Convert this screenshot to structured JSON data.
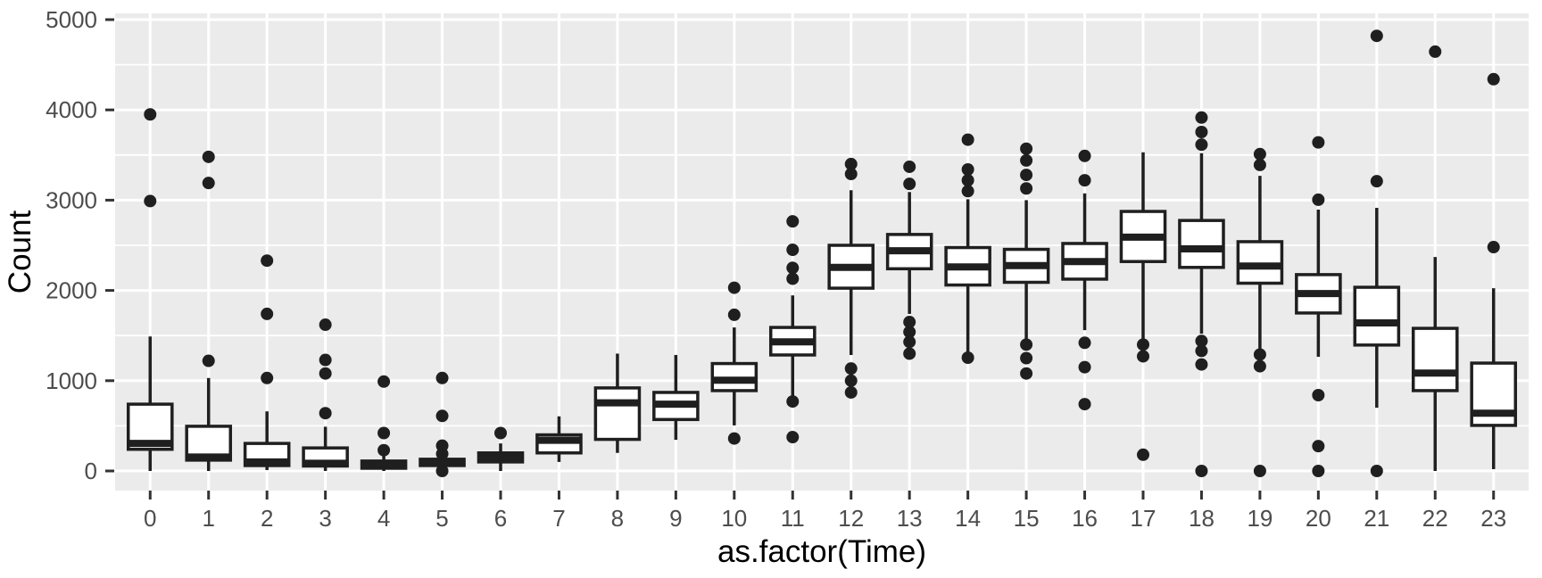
{
  "chart_data": {
    "type": "boxplot",
    "title": "",
    "xlabel": "as.factor(Time)",
    "ylabel": "Count",
    "x_tick_labels": [
      "0",
      "1",
      "2",
      "3",
      "4",
      "5",
      "6",
      "7",
      "8",
      "9",
      "10",
      "11",
      "12",
      "13",
      "14",
      "15",
      "16",
      "17",
      "18",
      "19",
      "20",
      "21",
      "22",
      "23"
    ],
    "y_tick_labels": [
      "0",
      "1000",
      "2000",
      "3000",
      "4000",
      "5000"
    ],
    "y_major_breaks": [
      0,
      1000,
      2000,
      3000,
      4000,
      5000
    ],
    "y_minor_breaks": [
      500,
      1500,
      2500,
      3500,
      4500
    ],
    "ylim": [
      -220,
      5070
    ],
    "grid": "on",
    "legend": "none",
    "boxes": [
      {
        "time": "0",
        "low": 0,
        "q1": 240,
        "median": 305,
        "q3": 740,
        "high": 1490,
        "outliers": [
          2990,
          3950
        ]
      },
      {
        "time": "1",
        "low": 0,
        "q1": 120,
        "median": 155,
        "q3": 495,
        "high": 1030,
        "outliers": [
          1220,
          3190,
          3480
        ]
      },
      {
        "time": "2",
        "low": 10,
        "q1": 60,
        "median": 100,
        "q3": 305,
        "high": 660,
        "outliers": [
          1030,
          1740,
          2330
        ]
      },
      {
        "time": "3",
        "low": 0,
        "q1": 55,
        "median": 85,
        "q3": 255,
        "high": 490,
        "outliers": [
          640,
          1080,
          1230,
          1620
        ]
      },
      {
        "time": "4",
        "low": 0,
        "q1": 30,
        "median": 75,
        "q3": 110,
        "high": 165,
        "outliers": [
          230,
          420,
          990
        ]
      },
      {
        "time": "5",
        "low": 0,
        "q1": 60,
        "median": 95,
        "q3": 130,
        "high": 200,
        "outliers": [
          0,
          190,
          280,
          610,
          1030
        ]
      },
      {
        "time": "6",
        "low": 0,
        "q1": 100,
        "median": 150,
        "q3": 200,
        "high": 305,
        "outliers": [
          420
        ]
      },
      {
        "time": "7",
        "low": 100,
        "q1": 200,
        "median": 340,
        "q3": 400,
        "high": 605,
        "outliers": []
      },
      {
        "time": "8",
        "low": 200,
        "q1": 350,
        "median": 755,
        "q3": 920,
        "high": 1300,
        "outliers": []
      },
      {
        "time": "9",
        "low": 345,
        "q1": 570,
        "median": 740,
        "q3": 870,
        "high": 1285,
        "outliers": []
      },
      {
        "time": "10",
        "low": 505,
        "q1": 890,
        "median": 1005,
        "q3": 1190,
        "high": 1590,
        "outliers": [
          360,
          1730,
          2030
        ]
      },
      {
        "time": "11",
        "low": 820,
        "q1": 1285,
        "median": 1430,
        "q3": 1590,
        "high": 1945,
        "outliers": [
          375,
          770,
          2130,
          2250,
          2450,
          2765
        ]
      },
      {
        "time": "12",
        "low": 1285,
        "q1": 2025,
        "median": 2255,
        "q3": 2500,
        "high": 3110,
        "outliers": [
          870,
          1000,
          1135,
          3290,
          3400
        ]
      },
      {
        "time": "13",
        "low": 1740,
        "q1": 2240,
        "median": 2440,
        "q3": 2620,
        "high": 3090,
        "outliers": [
          1300,
          1430,
          1540,
          1650,
          3180,
          3370
        ]
      },
      {
        "time": "14",
        "low": 1300,
        "q1": 2060,
        "median": 2260,
        "q3": 2475,
        "high": 3010,
        "outliers": [
          1255,
          3100,
          3220,
          3340,
          3670
        ]
      },
      {
        "time": "15",
        "low": 1450,
        "q1": 2090,
        "median": 2275,
        "q3": 2455,
        "high": 3000,
        "outliers": [
          1080,
          1250,
          1400,
          3130,
          3280,
          3440,
          3570
        ]
      },
      {
        "time": "16",
        "low": 1560,
        "q1": 2125,
        "median": 2320,
        "q3": 2520,
        "high": 3075,
        "outliers": [
          740,
          1150,
          1420,
          3220,
          3490
        ]
      },
      {
        "time": "17",
        "low": 1450,
        "q1": 2320,
        "median": 2590,
        "q3": 2875,
        "high": 3530,
        "outliers": [
          180,
          1270,
          1400
        ]
      },
      {
        "time": "18",
        "low": 1520,
        "q1": 2255,
        "median": 2460,
        "q3": 2775,
        "high": 3520,
        "outliers": [
          0,
          1180,
          1330,
          1440,
          3615,
          3755,
          3915
        ]
      },
      {
        "time": "19",
        "low": 1265,
        "q1": 2080,
        "median": 2270,
        "q3": 2540,
        "high": 3270,
        "outliers": [
          0,
          1160,
          1290,
          3390,
          3510
        ]
      },
      {
        "time": "20",
        "low": 1265,
        "q1": 1750,
        "median": 1965,
        "q3": 2175,
        "high": 2895,
        "outliers": [
          0,
          275,
          840,
          3005,
          3640
        ]
      },
      {
        "time": "21",
        "low": 700,
        "q1": 1395,
        "median": 1640,
        "q3": 2035,
        "high": 2915,
        "outliers": [
          0,
          3210,
          4820
        ]
      },
      {
        "time": "22",
        "low": 0,
        "q1": 890,
        "median": 1085,
        "q3": 1580,
        "high": 2370,
        "outliers": [
          4645
        ]
      },
      {
        "time": "23",
        "low": 20,
        "q1": 505,
        "median": 640,
        "q3": 1195,
        "high": 2025,
        "outliers": [
          2480,
          4340
        ]
      }
    ],
    "colors": {
      "panel_background": "#EBEBEB",
      "gridline": "#FFFFFF",
      "box_stroke": "#1F1F1F",
      "box_fill": "#FFFFFF",
      "outlier_fill": "#1F1F1F",
      "axis_text": "#4D4D4D",
      "axis_title": "#000000",
      "tick_mark": "#333333"
    }
  }
}
